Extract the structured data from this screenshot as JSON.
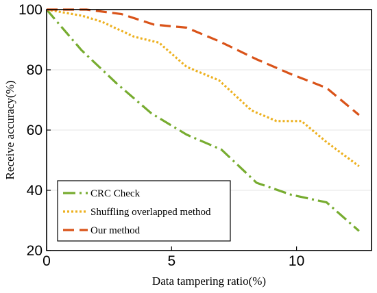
{
  "chart_data": {
    "type": "line",
    "xlabel": "Data tampering ratio(%)",
    "ylabel": "Receive accuracy(%)",
    "xlim": [
      0,
      13
    ],
    "ylim": [
      20,
      100
    ],
    "xticks": [
      0,
      5,
      10
    ],
    "yticks": [
      20,
      40,
      60,
      80,
      100
    ],
    "grid": "horizontal",
    "legend_position": "bottom-left",
    "series": [
      {
        "name": "CRC Check",
        "color": "#77ac30",
        "dash": "dash-dot",
        "x": [
          0,
          1.4,
          2.8,
          4.2,
          5.6,
          7.0,
          8.4,
          9.8,
          11.2,
          12.5
        ],
        "y": [
          100,
          86.5,
          75.5,
          65.5,
          58.5,
          53.5,
          42.5,
          38.5,
          36.0,
          26.5
        ]
      },
      {
        "name": "Shuffling overlapped method",
        "color": "#edb120",
        "dash": "dotted",
        "x": [
          0,
          1.4,
          2.2,
          3.5,
          4.5,
          5.6,
          6.9,
          8.2,
          9.2,
          10.2,
          11.2,
          12.5
        ],
        "y": [
          100,
          98.0,
          96.0,
          91.0,
          89.0,
          81.0,
          76.5,
          66.5,
          63.0,
          63.0,
          56.0,
          48.0
        ]
      },
      {
        "name": "Our method",
        "color": "#d95319",
        "dash": "dashed",
        "x": [
          0,
          1.6,
          3.0,
          4.3,
          5.6,
          6.9,
          8.4,
          9.8,
          11.2,
          12.5
        ],
        "y": [
          100,
          100,
          98.5,
          95.0,
          94.0,
          89.5,
          83.5,
          78.5,
          74.0,
          65.0
        ]
      }
    ]
  }
}
